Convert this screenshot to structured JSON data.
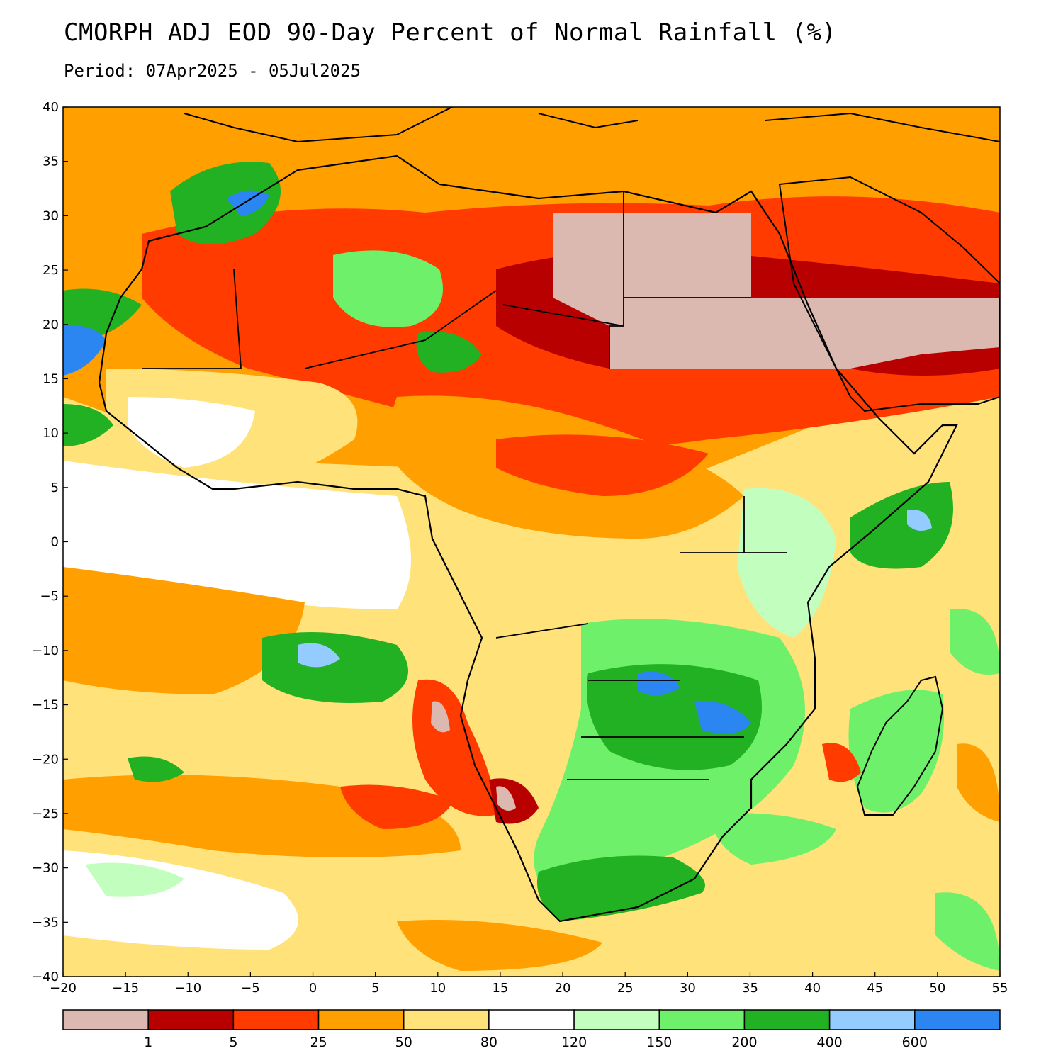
{
  "header": {
    "title": "CMORPH ADJ EOD 90-Day Percent of Normal Rainfall (%)",
    "subtitle": "Period: 07Apr2025 - 05Jul2025"
  },
  "map": {
    "lon_range": [
      -20,
      55
    ],
    "lat_range": [
      -40,
      40
    ],
    "x_ticks": [
      "−20",
      "−15",
      "−10",
      "−5",
      "0",
      "5",
      "10",
      "15",
      "20",
      "25",
      "30",
      "35",
      "40",
      "45",
      "50",
      "55"
    ],
    "y_ticks": [
      "40",
      "35",
      "30",
      "25",
      "20",
      "15",
      "10",
      "5",
      "0",
      "−5",
      "−10",
      "−15",
      "−20",
      "−25",
      "−30",
      "−35",
      "−40"
    ]
  },
  "legend": {
    "colors": [
      "#dbb9b0",
      "#b80000",
      "#ff3b00",
      "#ff9f00",
      "#ffe27a",
      "#ffffff",
      "#c2ffbe",
      "#6ff06a",
      "#22b122",
      "#94ccff",
      "#2b86f2"
    ],
    "labels": [
      "1",
      "5",
      "25",
      "50",
      "80",
      "120",
      "150",
      "200",
      "400",
      "600"
    ]
  }
}
